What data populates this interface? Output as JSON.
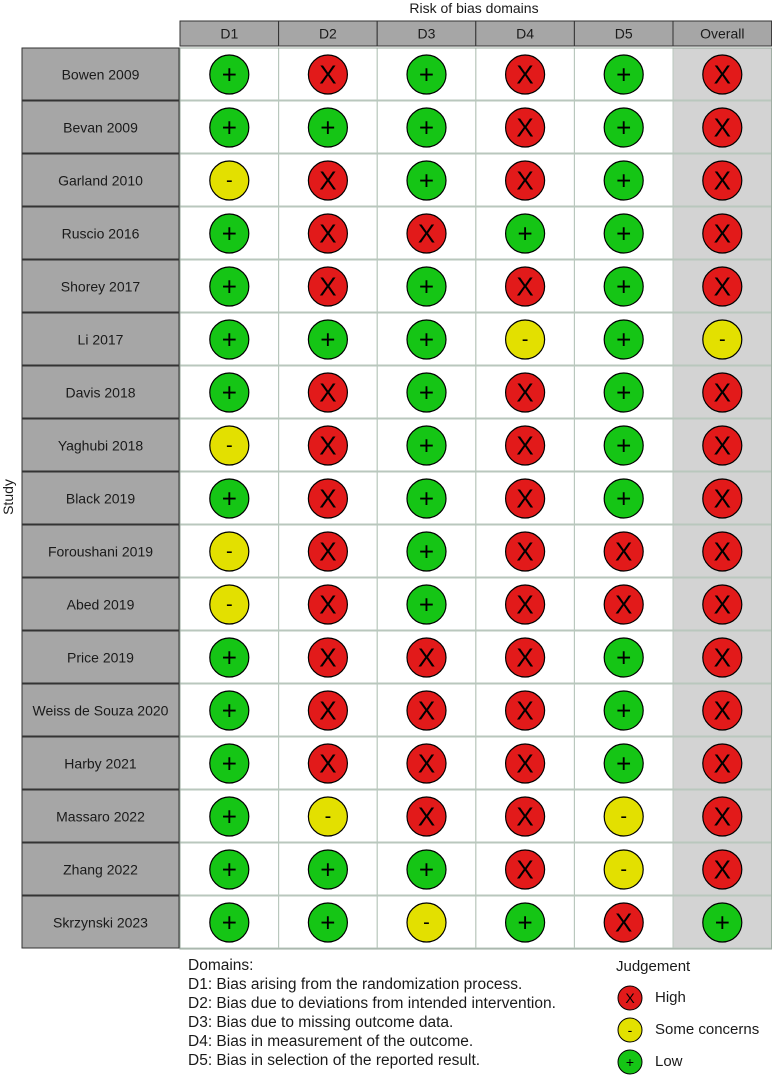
{
  "title": "Risk of bias domains",
  "y_axis_label": "Study",
  "columns": [
    "D1",
    "D2",
    "D3",
    "D4",
    "D5",
    "Overall"
  ],
  "symbols": {
    "High": "X",
    "Some concerns": "-",
    "Low": "+"
  },
  "colors": {
    "High": "#e21a1a",
    "Some concerns": "#e3e000",
    "Low": "#15c515",
    "header_fill": "#a6a6a6",
    "study_fill": "#a6a6a6",
    "overall_fill": "#d3d3d3"
  },
  "chart_data": {
    "type": "table",
    "title": "Risk of bias domains",
    "ylabel": "Study",
    "columns": [
      "D1",
      "D2",
      "D3",
      "D4",
      "D5",
      "Overall"
    ],
    "rows": [
      {
        "study": "Bowen 2009",
        "judgements": [
          "Low",
          "High",
          "Low",
          "High",
          "Low",
          "High"
        ]
      },
      {
        "study": "Bevan 2009",
        "judgements": [
          "Low",
          "Low",
          "Low",
          "High",
          "Low",
          "High"
        ]
      },
      {
        "study": "Garland 2010",
        "judgements": [
          "Some concerns",
          "High",
          "Low",
          "High",
          "Low",
          "High"
        ]
      },
      {
        "study": "Ruscio 2016",
        "judgements": [
          "Low",
          "High",
          "High",
          "Low",
          "Low",
          "High"
        ]
      },
      {
        "study": "Shorey 2017",
        "judgements": [
          "Low",
          "High",
          "Low",
          "High",
          "Low",
          "High"
        ]
      },
      {
        "study": "Li 2017",
        "judgements": [
          "Low",
          "Low",
          "Low",
          "Some concerns",
          "Low",
          "Some concerns"
        ]
      },
      {
        "study": "Davis 2018",
        "judgements": [
          "Low",
          "High",
          "Low",
          "High",
          "Low",
          "High"
        ]
      },
      {
        "study": "Yaghubi 2018",
        "judgements": [
          "Some concerns",
          "High",
          "Low",
          "High",
          "Low",
          "High"
        ]
      },
      {
        "study": "Black 2019",
        "judgements": [
          "Low",
          "High",
          "Low",
          "High",
          "Low",
          "High"
        ]
      },
      {
        "study": "Foroushani 2019",
        "judgements": [
          "Some concerns",
          "High",
          "Low",
          "High",
          "High",
          "High"
        ]
      },
      {
        "study": "Abed 2019",
        "judgements": [
          "Some concerns",
          "High",
          "Low",
          "High",
          "High",
          "High"
        ]
      },
      {
        "study": "Price 2019",
        "judgements": [
          "Low",
          "High",
          "High",
          "High",
          "Low",
          "High"
        ]
      },
      {
        "study": "Weiss de Souza 2020",
        "judgements": [
          "Low",
          "High",
          "High",
          "High",
          "Low",
          "High"
        ]
      },
      {
        "study": "Harby 2021",
        "judgements": [
          "Low",
          "High",
          "High",
          "High",
          "Low",
          "High"
        ]
      },
      {
        "study": "Massaro 2022",
        "judgements": [
          "Low",
          "Some concerns",
          "High",
          "High",
          "Some concerns",
          "High"
        ]
      },
      {
        "study": "Zhang 2022",
        "judgements": [
          "Low",
          "Low",
          "Low",
          "High",
          "Some concerns",
          "High"
        ]
      },
      {
        "study": "Skrzynski 2023",
        "judgements": [
          "Low",
          "Low",
          "Some concerns",
          "Low",
          "High",
          "Low"
        ]
      }
    ]
  },
  "domains_legend": {
    "heading": "Domains:",
    "items": [
      "D1: Bias arising from the randomization process.",
      "D2: Bias due to deviations from intended intervention.",
      "D3: Bias due to missing outcome data.",
      "D4: Bias in measurement of the outcome.",
      "D5: Bias in selection of the reported result."
    ]
  },
  "judgement_legend": {
    "title": "Judgement",
    "items": [
      {
        "label": "High",
        "level": "High"
      },
      {
        "label": "Some concerns",
        "level": "Some concerns"
      },
      {
        "label": "Low",
        "level": "Low"
      }
    ]
  }
}
